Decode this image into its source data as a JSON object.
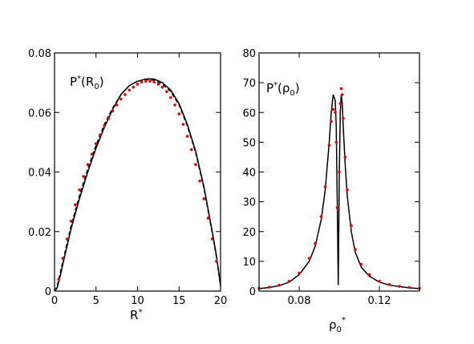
{
  "chart_data": [
    {
      "type": "line",
      "panel_label": "P*(R0)",
      "panel_label_main": "P",
      "panel_label_sup": "*",
      "panel_label_arg_main": "(R",
      "panel_label_arg_sub": "0",
      "panel_label_arg_close": ")",
      "xlabel_main": "R",
      "xlabel_sup": "*",
      "xlim": [
        0,
        20
      ],
      "ylim": [
        0,
        0.08
      ],
      "xticks": [
        0,
        5,
        10,
        15,
        20
      ],
      "xtick_labels": [
        "0",
        "5",
        "10",
        "15",
        "20"
      ],
      "yticks": [
        0,
        0.02,
        0.04,
        0.06,
        0.08
      ],
      "ytick_labels": [
        "0",
        "0.02",
        "0.04",
        "0.06",
        "0.08"
      ],
      "series": [
        {
          "style": "solid",
          "color": "#000000",
          "x": [
            0,
            0.3,
            0.6,
            1,
            1.5,
            2,
            3,
            4,
            5,
            6,
            7,
            8,
            9,
            10,
            11,
            11.5,
            12,
            13,
            14,
            15,
            16,
            17,
            18,
            19,
            19.5,
            19.8,
            20
          ],
          "y": [
            0,
            0.001,
            0.004,
            0.009,
            0.015,
            0.021,
            0.031,
            0.04,
            0.048,
            0.055,
            0.061,
            0.066,
            0.069,
            0.0705,
            0.0712,
            0.0713,
            0.0712,
            0.07,
            0.0675,
            0.063,
            0.056,
            0.047,
            0.035,
            0.02,
            0.012,
            0.006,
            0.002
          ]
        },
        {
          "style": "dashed",
          "color": "#000000",
          "x": [
            0,
            0.3,
            0.6,
            1,
            1.5,
            2,
            3,
            4,
            5,
            6,
            7,
            8,
            9,
            10,
            11,
            11.5,
            12,
            13,
            14,
            15,
            16,
            17,
            18,
            19,
            19.5,
            19.8,
            20
          ],
          "y": [
            0,
            0.0015,
            0.005,
            0.01,
            0.016,
            0.022,
            0.032,
            0.041,
            0.049,
            0.056,
            0.0615,
            0.066,
            0.069,
            0.0705,
            0.071,
            0.071,
            0.0708,
            0.0695,
            0.067,
            0.0625,
            0.0555,
            0.0465,
            0.0345,
            0.0195,
            0.0115,
            0.0055,
            0.0015
          ]
        },
        {
          "style": "markers",
          "color": "#dd0000",
          "x": [
            0.5,
            1,
            1.5,
            2,
            2.5,
            3,
            3.5,
            4,
            4.5,
            5,
            5.5,
            6,
            6.5,
            7,
            7.5,
            8,
            8.5,
            9,
            9.5,
            10,
            10.5,
            11,
            11.5,
            12,
            12.5,
            13,
            13.5,
            14,
            14.5,
            15,
            15.5,
            16,
            16.5,
            17,
            17.5,
            18,
            18.5,
            19,
            19.5
          ],
          "y": [
            0.004,
            0.011,
            0.0175,
            0.0235,
            0.029,
            0.034,
            0.0385,
            0.0425,
            0.046,
            0.0495,
            0.0525,
            0.0555,
            0.058,
            0.0605,
            0.0625,
            0.0645,
            0.066,
            0.0675,
            0.0685,
            0.0695,
            0.0702,
            0.0705,
            0.0705,
            0.0702,
            0.0695,
            0.0685,
            0.067,
            0.065,
            0.0625,
            0.0595,
            0.056,
            0.052,
            0.0475,
            0.0425,
            0.037,
            0.031,
            0.0245,
            0.0175,
            0.01
          ]
        }
      ]
    },
    {
      "type": "line",
      "panel_label": "P*(ρ0)",
      "panel_label_main": "P",
      "panel_label_sup": "*",
      "panel_label_arg_main": "(ρ",
      "panel_label_arg_sub": "0",
      "panel_label_arg_close": ")",
      "xlabel_main": "ρ",
      "xlabel_sub": "0",
      "xlabel_sup": "*",
      "xlim": [
        0.06,
        0.14
      ],
      "ylim": [
        0,
        80
      ],
      "xticks": [
        0.08,
        0.12
      ],
      "xtick_labels": [
        "0.08",
        "0.12"
      ],
      "yticks": [
        0,
        10,
        20,
        30,
        40,
        50,
        60,
        70,
        80
      ],
      "ytick_labels": [
        "0",
        "10",
        "20",
        "30",
        "40",
        "50",
        "60",
        "70",
        "80"
      ],
      "series": [
        {
          "style": "solid",
          "color": "#000000",
          "x": [
            0.06,
            0.065,
            0.07,
            0.075,
            0.08,
            0.085,
            0.088,
            0.091,
            0.093,
            0.095,
            0.096,
            0.097,
            0.098,
            0.0985,
            0.099,
            0.0995,
            0.1,
            0.1005,
            0.101,
            0.1015,
            0.102,
            0.103,
            0.104,
            0.106,
            0.108,
            0.111,
            0.115,
            0.12,
            0.125,
            0.13,
            0.135,
            0.14
          ],
          "y": [
            0.8,
            1.2,
            1.8,
            3.0,
            5.5,
            10,
            15,
            24,
            34,
            50,
            60,
            66,
            64,
            55,
            30,
            2,
            38,
            60,
            66,
            63,
            55,
            42,
            32,
            20,
            13,
            8,
            5,
            3,
            2,
            1.5,
            1.1,
            0.8
          ]
        },
        {
          "style": "markers",
          "color": "#dd0000",
          "x": [
            0.06,
            0.065,
            0.07,
            0.075,
            0.08,
            0.085,
            0.088,
            0.091,
            0.093,
            0.095,
            0.096,
            0.097,
            0.098,
            0.0985,
            0.099,
            0.1,
            0.1005,
            0.101,
            0.1015,
            0.102,
            0.103,
            0.104,
            0.106,
            0.108,
            0.111,
            0.115,
            0.12,
            0.125,
            0.13,
            0.135,
            0.14
          ],
          "y": [
            0.9,
            1.3,
            2.0,
            3.3,
            6.0,
            11,
            16,
            25,
            35,
            49,
            57,
            61,
            60,
            50,
            28,
            40,
            63,
            68,
            66,
            58,
            45,
            34,
            22,
            14,
            9,
            5.5,
            3.3,
            2.2,
            1.6,
            1.2,
            0.9
          ]
        }
      ]
    }
  ]
}
